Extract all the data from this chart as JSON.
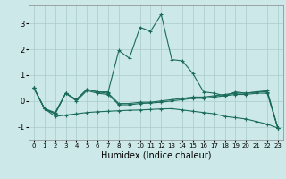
{
  "xlabel": "Humidex (Indice chaleur)",
  "background_color": "#cce8e8",
  "grid_color": "#aacccc",
  "line_color": "#1a6b5a",
  "xlim": [
    -0.5,
    23.5
  ],
  "ylim": [
    -1.5,
    3.7
  ],
  "yticks": [
    -1,
    0,
    1,
    2,
    3
  ],
  "xticks": [
    0,
    1,
    2,
    3,
    4,
    5,
    6,
    7,
    8,
    9,
    10,
    11,
    12,
    13,
    14,
    15,
    16,
    17,
    18,
    19,
    20,
    21,
    22,
    23
  ],
  "lines": [
    {
      "x": [
        0,
        1,
        2,
        3,
        4,
        5,
        6,
        7,
        8,
        9,
        10,
        11,
        12,
        13,
        14,
        15,
        16,
        17,
        18,
        19,
        20,
        21,
        22,
        23
      ],
      "y": [
        0.5,
        -0.3,
        -0.5,
        0.3,
        0.05,
        0.45,
        0.35,
        0.35,
        1.95,
        1.65,
        2.85,
        2.7,
        3.35,
        1.6,
        1.55,
        1.05,
        0.35,
        0.3,
        0.2,
        0.35,
        0.3,
        0.35,
        0.4,
        -1.05
      ]
    },
    {
      "x": [
        0,
        1,
        2,
        3,
        4,
        5,
        6,
        7,
        8,
        9,
        10,
        11,
        12,
        13,
        14,
        15,
        16,
        17,
        18,
        19,
        20,
        21,
        22,
        23
      ],
      "y": [
        0.5,
        -0.3,
        -0.45,
        0.3,
        0.05,
        0.45,
        0.35,
        0.3,
        -0.1,
        -0.1,
        -0.05,
        -0.05,
        0.0,
        0.05,
        0.1,
        0.15,
        0.15,
        0.2,
        0.25,
        0.3,
        0.3,
        0.35,
        0.35,
        -1.05
      ]
    },
    {
      "x": [
        0,
        1,
        2,
        3,
        4,
        5,
        6,
        7,
        8,
        9,
        10,
        11,
        12,
        13,
        14,
        15,
        16,
        17,
        18,
        19,
        20,
        21,
        22,
        23
      ],
      "y": [
        0.5,
        -0.3,
        -0.5,
        0.3,
        0.0,
        0.4,
        0.3,
        0.25,
        -0.15,
        -0.15,
        -0.1,
        -0.08,
        -0.05,
        0.0,
        0.05,
        0.1,
        0.1,
        0.15,
        0.2,
        0.25,
        0.25,
        0.3,
        0.3,
        -1.05
      ]
    },
    {
      "x": [
        0,
        1,
        2,
        3,
        4,
        5,
        6,
        7,
        8,
        9,
        10,
        11,
        12,
        13,
        14,
        15,
        16,
        17,
        18,
        19,
        20,
        21,
        22,
        23
      ],
      "y": [
        0.5,
        -0.3,
        -0.6,
        -0.55,
        -0.5,
        -0.45,
        -0.42,
        -0.4,
        -0.38,
        -0.36,
        -0.35,
        -0.33,
        -0.31,
        -0.3,
        -0.35,
        -0.4,
        -0.45,
        -0.5,
        -0.6,
        -0.65,
        -0.7,
        -0.8,
        -0.9,
        -1.05
      ]
    }
  ]
}
